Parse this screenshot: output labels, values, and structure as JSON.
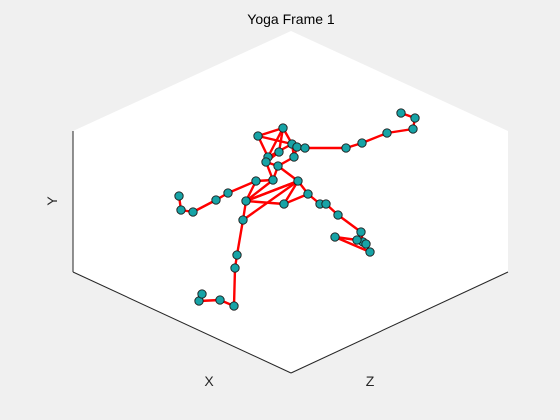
{
  "chart_data": {
    "type": "scatter",
    "title": "Yoga Frame 1",
    "xlabel": "X",
    "ylabel": "Y",
    "zlabel": "Z",
    "view": "3d",
    "grid": false,
    "legend": "none",
    "marker_color": "#17a3a6",
    "marker_edge": "#1a1a1a",
    "line_color": "#ff0000",
    "box_face": "#ffffff",
    "box_edge": "#262626",
    "joints": [
      [
        258,
        136
      ],
      [
        283,
        128
      ],
      [
        292,
        144
      ],
      [
        297,
        147
      ],
      [
        305,
        148
      ],
      [
        268,
        157
      ],
      [
        279,
        152
      ],
      [
        266,
        162
      ],
      [
        294,
        157
      ],
      [
        278,
        166
      ],
      [
        273,
        180
      ],
      [
        256,
        181
      ],
      [
        298,
        181
      ],
      [
        308,
        194
      ],
      [
        346,
        148
      ],
      [
        362,
        143
      ],
      [
        387,
        133
      ],
      [
        413,
        129
      ],
      [
        415,
        118
      ],
      [
        401,
        113
      ],
      [
        228,
        193
      ],
      [
        216,
        200
      ],
      [
        193,
        212
      ],
      [
        181,
        210
      ],
      [
        179,
        196
      ],
      [
        246,
        201
      ],
      [
        284,
        204
      ],
      [
        320,
        204
      ],
      [
        326,
        204
      ],
      [
        338,
        215
      ],
      [
        361,
        232
      ],
      [
        363,
        242
      ],
      [
        366,
        244
      ],
      [
        370,
        252
      ],
      [
        335,
        237
      ],
      [
        357,
        240
      ],
      [
        243,
        220
      ],
      [
        237,
        255
      ],
      [
        235,
        268
      ],
      [
        234,
        306
      ],
      [
        220,
        300
      ],
      [
        199,
        301
      ],
      [
        202,
        294
      ]
    ],
    "bones": [
      [
        0,
        1
      ],
      [
        1,
        2
      ],
      [
        2,
        3
      ],
      [
        3,
        4
      ],
      [
        0,
        2
      ],
      [
        0,
        5
      ],
      [
        1,
        5
      ],
      [
        2,
        5
      ],
      [
        1,
        6
      ],
      [
        2,
        8
      ],
      [
        3,
        8
      ],
      [
        5,
        7
      ],
      [
        6,
        7
      ],
      [
        7,
        9
      ],
      [
        8,
        9
      ],
      [
        9,
        10
      ],
      [
        9,
        12
      ],
      [
        7,
        10
      ],
      [
        4,
        14
      ],
      [
        14,
        15
      ],
      [
        15,
        16
      ],
      [
        16,
        17
      ],
      [
        17,
        18
      ],
      [
        18,
        19
      ],
      [
        10,
        11
      ],
      [
        11,
        20
      ],
      [
        20,
        21
      ],
      [
        21,
        22
      ],
      [
        22,
        23
      ],
      [
        23,
        24
      ],
      [
        12,
        13
      ],
      [
        13,
        27
      ],
      [
        27,
        28
      ],
      [
        28,
        29
      ],
      [
        29,
        30
      ],
      [
        30,
        31
      ],
      [
        31,
        32
      ],
      [
        32,
        33
      ],
      [
        33,
        34
      ],
      [
        34,
        35
      ],
      [
        35,
        32
      ],
      [
        10,
        25
      ],
      [
        25,
        26
      ],
      [
        26,
        12
      ],
      [
        25,
        12
      ],
      [
        12,
        25
      ],
      [
        11,
        25
      ],
      [
        25,
        36
      ],
      [
        36,
        12
      ],
      [
        36,
        37
      ],
      [
        37,
        38
      ],
      [
        38,
        39
      ],
      [
        39,
        40
      ],
      [
        40,
        41
      ],
      [
        41,
        42
      ],
      [
        13,
        26
      ]
    ]
  }
}
